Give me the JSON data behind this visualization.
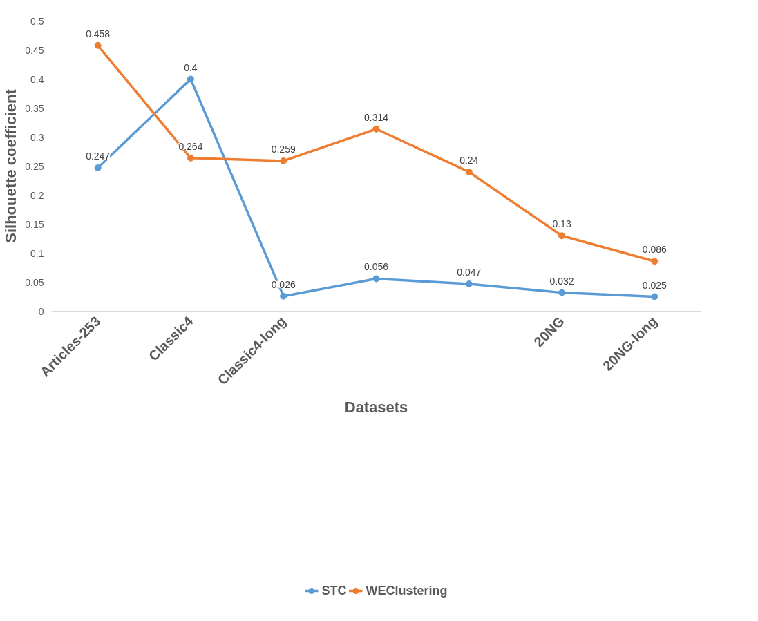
{
  "chart_data": {
    "type": "line",
    "xlabel": "Datasets",
    "ylabel": "Silhouette coefficient",
    "categories": [
      "Articles-253",
      "Classic4",
      "Classic4-long",
      null,
      null,
      "20NG",
      "20NG-long"
    ],
    "series": [
      {
        "name": "STC",
        "color": "#5b9bd5",
        "values": [
          0.247,
          0.4,
          0.026,
          0.056,
          0.047,
          0.032,
          0.025
        ]
      },
      {
        "name": "WEClustering",
        "color": "#ed7d31",
        "values": [
          0.458,
          0.264,
          0.259,
          0.314,
          0.24,
          0.13,
          0.086
        ]
      }
    ],
    "ylim": [
      0,
      0.5
    ],
    "yticks": [
      0,
      0.05,
      0.1,
      0.15,
      0.2,
      0.25,
      0.3,
      0.35,
      0.4,
      0.45,
      0.5
    ],
    "grid": false,
    "legend": "bottom",
    "marker": "circle",
    "line_style": "solid",
    "data_labels": true
  }
}
